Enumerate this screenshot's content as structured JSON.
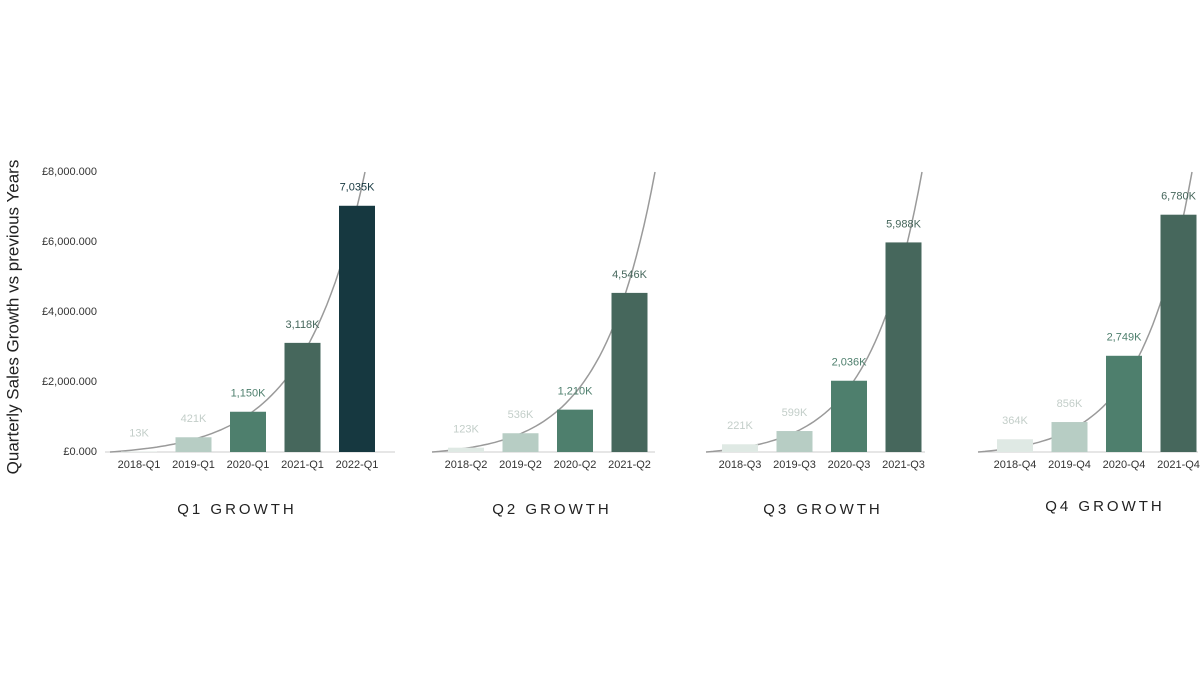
{
  "chart_data": [
    {
      "type": "bar",
      "title": "Q1 GROWTH",
      "y_label": "Quarterly Sales Growth vs previous Years",
      "categories": [
        "2018-Q1",
        "2019-Q1",
        "2020-Q1",
        "2021-Q1",
        "2022-Q1"
      ],
      "values": [
        13000,
        421000,
        1150000,
        3118000,
        7035000
      ],
      "value_labels": [
        "13K",
        "421K",
        "1,150K",
        "3,118K",
        "7,035K"
      ],
      "colors": [
        "#dfe9e4",
        "#b7cdc4",
        "#4e7f6d",
        "#46675c",
        "#163840"
      ],
      "ylim": [
        0,
        8000000
      ],
      "yticks": [
        {
          "value": 0,
          "label": "£0.000"
        },
        {
          "value": 2000000,
          "label": "£2,000.000"
        },
        {
          "value": 4000000,
          "label": "£4,000.000"
        },
        {
          "value": 6000000,
          "label": "£6,000.000"
        },
        {
          "value": 8000000,
          "label": "£8,000.000"
        }
      ]
    },
    {
      "type": "bar",
      "title": "Q2 GROWTH",
      "categories": [
        "2018-Q2",
        "2019-Q2",
        "2020-Q2",
        "2021-Q2"
      ],
      "values": [
        123000,
        536000,
        1210000,
        4546000
      ],
      "value_labels": [
        "123K",
        "536K",
        "1,210K",
        "4,546K"
      ],
      "colors": [
        "#dfe9e4",
        "#b7cdc4",
        "#4e7f6d",
        "#46675c"
      ],
      "ylim": [
        0,
        8000000
      ]
    },
    {
      "type": "bar",
      "title": "Q3 GROWTH",
      "categories": [
        "2018-Q3",
        "2019-Q3",
        "2020-Q3",
        "2021-Q3"
      ],
      "values": [
        221000,
        599000,
        2036000,
        5988000
      ],
      "value_labels": [
        "221K",
        "599K",
        "2,036K",
        "5,988K"
      ],
      "colors": [
        "#dfe9e4",
        "#b7cdc4",
        "#4e7f6d",
        "#46675c"
      ],
      "ylim": [
        0,
        8000000
      ]
    },
    {
      "type": "bar",
      "title": "Q4 GROWTH",
      "categories": [
        "2018-Q4",
        "2019-Q4",
        "2020-Q4",
        "2021-Q4"
      ],
      "values": [
        364000,
        856000,
        2749000,
        6780000
      ],
      "value_labels": [
        "364K",
        "856K",
        "2,749K",
        "6,780K"
      ],
      "colors": [
        "#dfe9e4",
        "#b7cdc4",
        "#4e7f6d",
        "#46675c"
      ],
      "ylim": [
        0,
        8000000
      ]
    }
  ]
}
